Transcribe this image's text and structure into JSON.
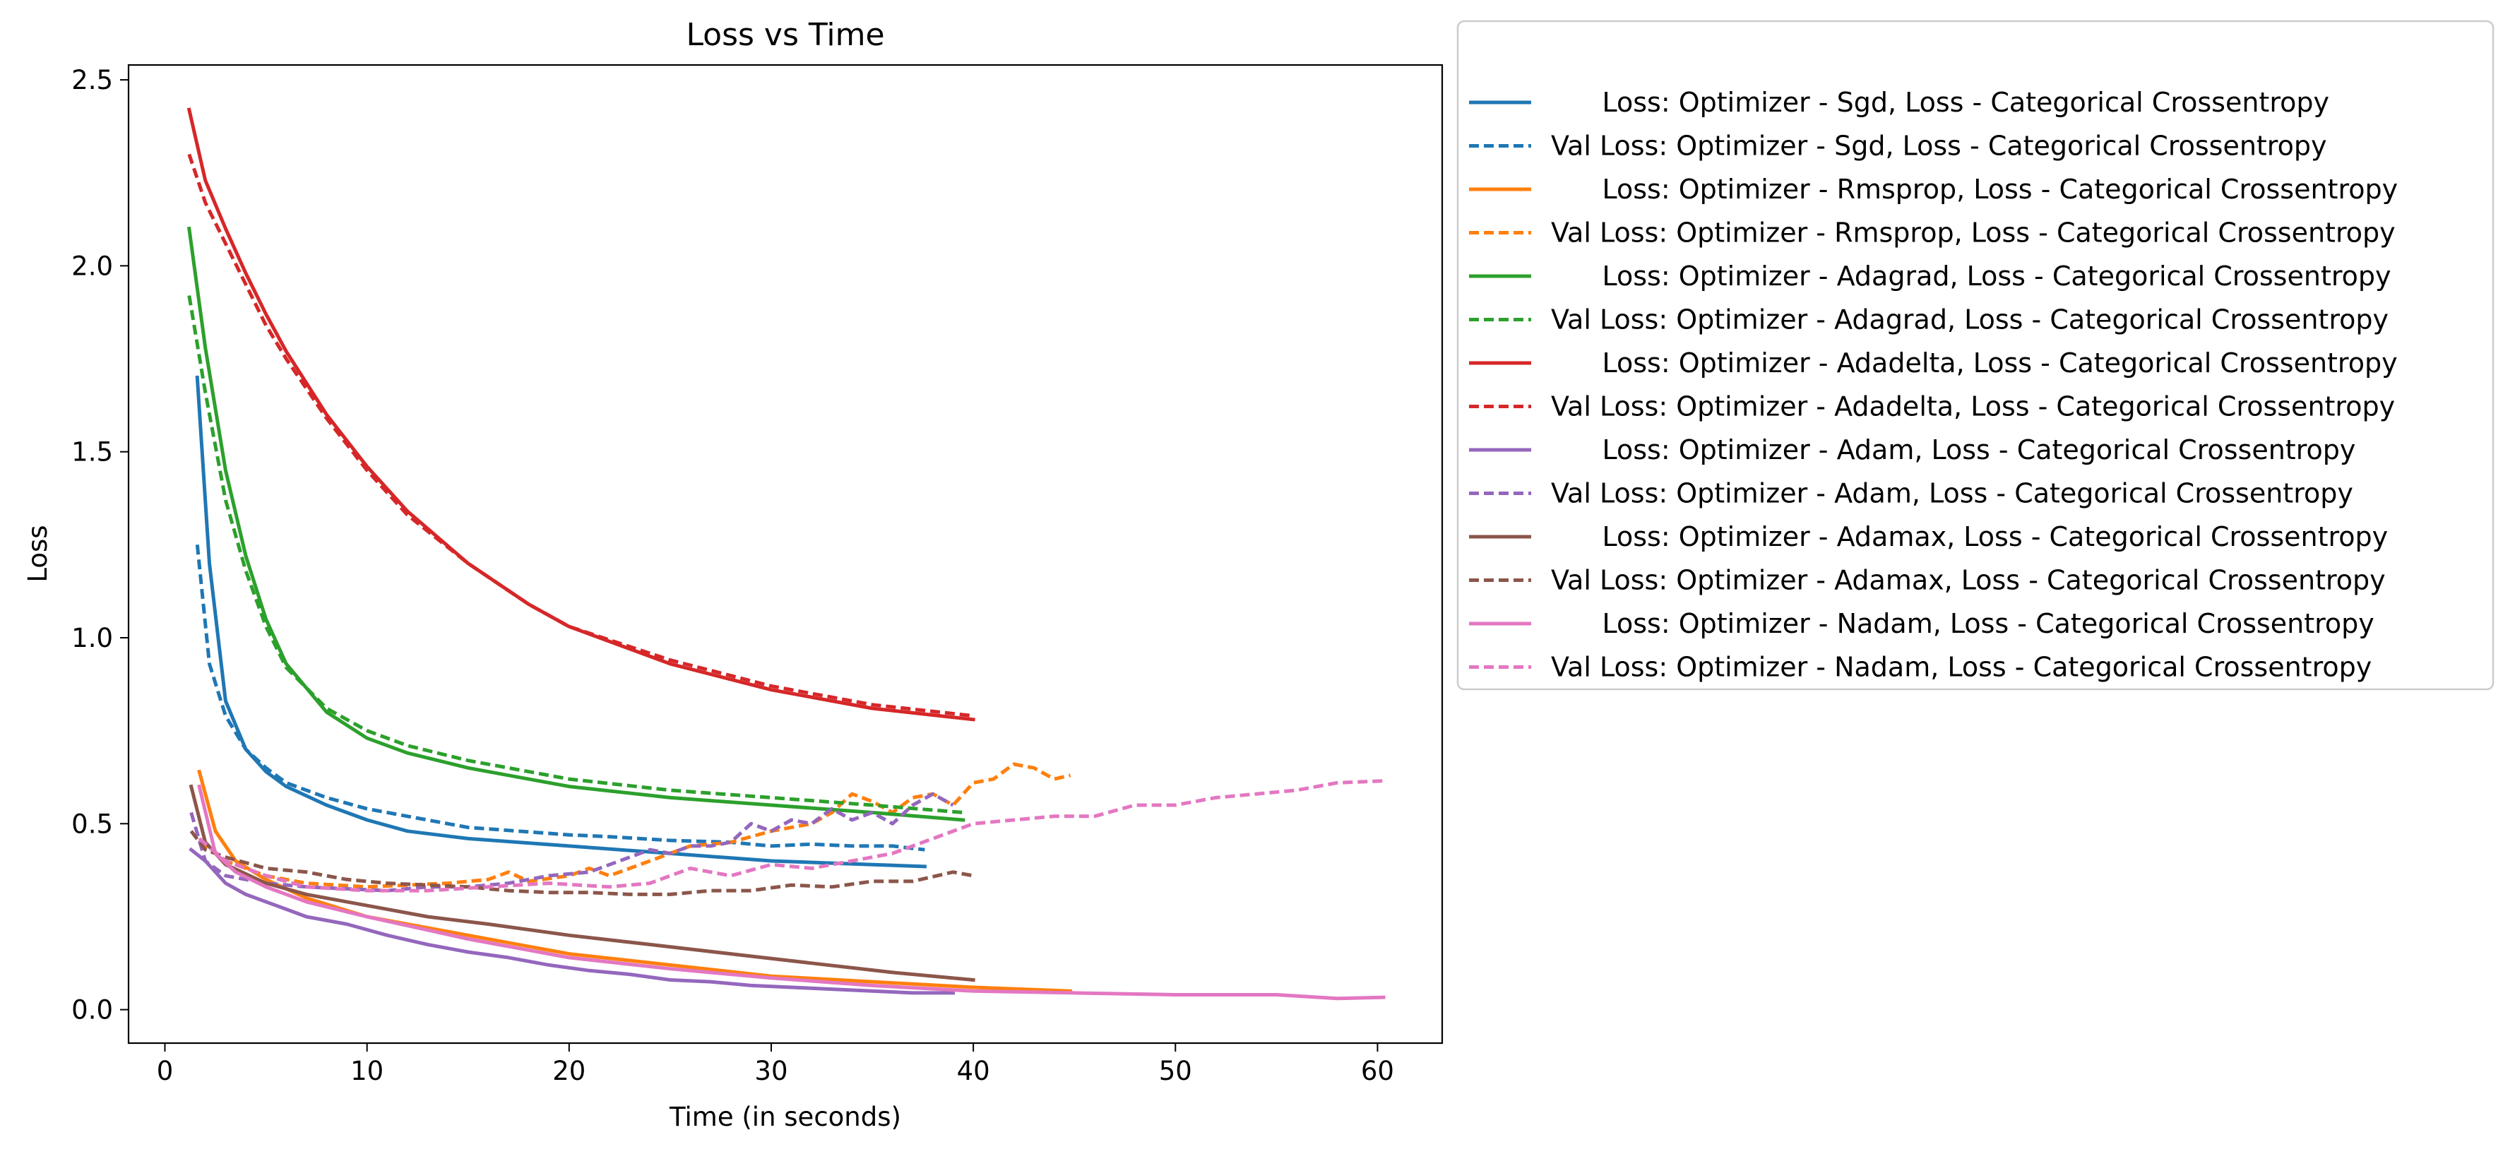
{
  "chart_data": {
    "type": "line",
    "title": "Loss vs Time",
    "xlabel": "Time (in seconds)",
    "ylabel": "Loss",
    "xlim": [
      -1.8,
      63.2
    ],
    "ylim": [
      -0.09,
      2.54
    ],
    "xticks": [
      0,
      10,
      20,
      30,
      40,
      50,
      60
    ],
    "xtick_labels": [
      "0",
      "10",
      "20",
      "30",
      "40",
      "50",
      "60"
    ],
    "yticks": [
      0.0,
      0.5,
      1.0,
      1.5,
      2.0,
      2.5
    ],
    "ytick_labels": [
      "0.0",
      "0.5",
      "1.0",
      "1.5",
      "2.0",
      "2.5"
    ],
    "grid": false,
    "legend_position": "outside-right",
    "series": [
      {
        "name": "      Loss: Optimizer - Sgd, Loss - Categorical Crossentropy",
        "color": "#1f77b4",
        "dash": "solid",
        "points": [
          [
            1.6,
            1.7
          ],
          [
            2.2,
            1.2
          ],
          [
            3.0,
            0.83
          ],
          [
            4.0,
            0.7
          ],
          [
            5.0,
            0.64
          ],
          [
            6.0,
            0.6
          ],
          [
            8.0,
            0.55
          ],
          [
            10.0,
            0.51
          ],
          [
            12.0,
            0.48
          ],
          [
            15.0,
            0.46
          ],
          [
            20.0,
            0.44
          ],
          [
            25.0,
            0.42
          ],
          [
            30.0,
            0.4
          ],
          [
            35.0,
            0.39
          ],
          [
            37.6,
            0.385
          ]
        ]
      },
      {
        "name": "Val Loss: Optimizer - Sgd, Loss - Categorical Crossentropy",
        "color": "#1f77b4",
        "dash": "dashed",
        "points": [
          [
            1.6,
            1.25
          ],
          [
            2.2,
            0.93
          ],
          [
            3.0,
            0.79
          ],
          [
            4.0,
            0.7
          ],
          [
            5.0,
            0.65
          ],
          [
            6.0,
            0.61
          ],
          [
            8.0,
            0.57
          ],
          [
            10.0,
            0.54
          ],
          [
            12.0,
            0.52
          ],
          [
            15.0,
            0.49
          ],
          [
            20.0,
            0.47
          ],
          [
            22.0,
            0.465
          ],
          [
            25.0,
            0.455
          ],
          [
            28.0,
            0.45
          ],
          [
            30.0,
            0.44
          ],
          [
            32.0,
            0.445
          ],
          [
            34.0,
            0.44
          ],
          [
            36.0,
            0.44
          ],
          [
            37.6,
            0.43
          ]
        ]
      },
      {
        "name": "      Loss: Optimizer - Rmsprop, Loss - Categorical Crossentropy",
        "color": "#ff7f0e",
        "dash": "solid",
        "points": [
          [
            1.7,
            0.64
          ],
          [
            2.5,
            0.48
          ],
          [
            3.5,
            0.4
          ],
          [
            5.0,
            0.35
          ],
          [
            7.0,
            0.3
          ],
          [
            10.0,
            0.25
          ],
          [
            15.0,
            0.2
          ],
          [
            20.0,
            0.15
          ],
          [
            25.0,
            0.12
          ],
          [
            30.0,
            0.09
          ],
          [
            35.0,
            0.075
          ],
          [
            40.0,
            0.06
          ],
          [
            44.8,
            0.05
          ]
        ]
      },
      {
        "name": "Val Loss: Optimizer - Rmsprop, Loss - Categorical Crossentropy",
        "color": "#ff7f0e",
        "dash": "dashed",
        "points": [
          [
            1.7,
            0.45
          ],
          [
            3.0,
            0.4
          ],
          [
            5.0,
            0.36
          ],
          [
            7.0,
            0.34
          ],
          [
            10.0,
            0.33
          ],
          [
            12.0,
            0.335
          ],
          [
            14.0,
            0.34
          ],
          [
            16.0,
            0.35
          ],
          [
            17.0,
            0.37
          ],
          [
            18.0,
            0.345
          ],
          [
            20.0,
            0.36
          ],
          [
            21.0,
            0.38
          ],
          [
            22.0,
            0.36
          ],
          [
            24.0,
            0.4
          ],
          [
            26.0,
            0.44
          ],
          [
            28.0,
            0.45
          ],
          [
            30.0,
            0.48
          ],
          [
            32.0,
            0.5
          ],
          [
            33.0,
            0.53
          ],
          [
            34.0,
            0.58
          ],
          [
            35.0,
            0.56
          ],
          [
            36.0,
            0.53
          ],
          [
            37.0,
            0.57
          ],
          [
            38.0,
            0.58
          ],
          [
            39.0,
            0.55
          ],
          [
            40.0,
            0.61
          ],
          [
            41.0,
            0.62
          ],
          [
            42.0,
            0.66
          ],
          [
            43.0,
            0.65
          ],
          [
            44.0,
            0.62
          ],
          [
            44.8,
            0.63
          ]
        ]
      },
      {
        "name": "      Loss: Optimizer - Adagrad, Loss - Categorical Crossentropy",
        "color": "#2ca02c",
        "dash": "solid",
        "points": [
          [
            1.2,
            2.1
          ],
          [
            2.0,
            1.78
          ],
          [
            3.0,
            1.45
          ],
          [
            4.0,
            1.22
          ],
          [
            5.0,
            1.05
          ],
          [
            6.0,
            0.93
          ],
          [
            8.0,
            0.8
          ],
          [
            10.0,
            0.73
          ],
          [
            12.0,
            0.69
          ],
          [
            15.0,
            0.65
          ],
          [
            20.0,
            0.6
          ],
          [
            25.0,
            0.57
          ],
          [
            30.0,
            0.55
          ],
          [
            35.0,
            0.53
          ],
          [
            39.5,
            0.51
          ]
        ]
      },
      {
        "name": "Val Loss: Optimizer - Adagrad, Loss - Categorical Crossentropy",
        "color": "#2ca02c",
        "dash": "dashed",
        "points": [
          [
            1.2,
            1.92
          ],
          [
            2.0,
            1.66
          ],
          [
            3.0,
            1.37
          ],
          [
            4.0,
            1.18
          ],
          [
            5.0,
            1.03
          ],
          [
            6.0,
            0.92
          ],
          [
            8.0,
            0.81
          ],
          [
            10.0,
            0.75
          ],
          [
            12.0,
            0.71
          ],
          [
            15.0,
            0.67
          ],
          [
            20.0,
            0.62
          ],
          [
            25.0,
            0.59
          ],
          [
            30.0,
            0.57
          ],
          [
            35.0,
            0.55
          ],
          [
            39.5,
            0.53
          ]
        ]
      },
      {
        "name": "      Loss: Optimizer - Adadelta, Loss - Categorical Crossentropy",
        "color": "#d62728",
        "dash": "solid",
        "points": [
          [
            1.2,
            2.42
          ],
          [
            2.0,
            2.23
          ],
          [
            3.0,
            2.1
          ],
          [
            4.0,
            1.98
          ],
          [
            5.0,
            1.87
          ],
          [
            6.0,
            1.77
          ],
          [
            8.0,
            1.6
          ],
          [
            10.0,
            1.46
          ],
          [
            12.0,
            1.34
          ],
          [
            15.0,
            1.2
          ],
          [
            18.0,
            1.09
          ],
          [
            20.0,
            1.03
          ],
          [
            25.0,
            0.93
          ],
          [
            30.0,
            0.86
          ],
          [
            35.0,
            0.81
          ],
          [
            40.0,
            0.78
          ]
        ]
      },
      {
        "name": "Val Loss: Optimizer - Adadelta, Loss - Categorical Crossentropy",
        "color": "#d62728",
        "dash": "dashed",
        "points": [
          [
            1.2,
            2.3
          ],
          [
            2.0,
            2.17
          ],
          [
            3.0,
            2.06
          ],
          [
            4.0,
            1.95
          ],
          [
            5.0,
            1.84
          ],
          [
            6.0,
            1.75
          ],
          [
            8.0,
            1.59
          ],
          [
            10.0,
            1.45
          ],
          [
            12.0,
            1.33
          ],
          [
            15.0,
            1.2
          ],
          [
            18.0,
            1.09
          ],
          [
            20.0,
            1.03
          ],
          [
            25.0,
            0.94
          ],
          [
            30.0,
            0.87
          ],
          [
            35.0,
            0.82
          ],
          [
            40.0,
            0.79
          ]
        ]
      },
      {
        "name": "      Loss: Optimizer - Adam, Loss - Categorical Crossentropy",
        "color": "#9467bd",
        "dash": "solid",
        "points": [
          [
            1.3,
            0.43
          ],
          [
            2.0,
            0.4
          ],
          [
            3.0,
            0.34
          ],
          [
            4.0,
            0.31
          ],
          [
            5.0,
            0.29
          ],
          [
            6.0,
            0.27
          ],
          [
            7.0,
            0.25
          ],
          [
            9.0,
            0.23
          ],
          [
            11.0,
            0.2
          ],
          [
            13.0,
            0.175
          ],
          [
            15.0,
            0.155
          ],
          [
            17.0,
            0.14
          ],
          [
            19.0,
            0.12
          ],
          [
            21.0,
            0.105
          ],
          [
            23.0,
            0.095
          ],
          [
            25.0,
            0.08
          ],
          [
            27.0,
            0.075
          ],
          [
            29.0,
            0.065
          ],
          [
            31.0,
            0.06
          ],
          [
            33.0,
            0.055
          ],
          [
            35.0,
            0.05
          ],
          [
            37.0,
            0.045
          ],
          [
            39.0,
            0.045
          ]
        ]
      },
      {
        "name": "Val Loss: Optimizer - Adam, Loss - Categorical Crossentropy",
        "color": "#9467bd",
        "dash": "dashed",
        "points": [
          [
            1.3,
            0.53
          ],
          [
            2.0,
            0.4
          ],
          [
            3.0,
            0.36
          ],
          [
            5.0,
            0.34
          ],
          [
            7.0,
            0.33
          ],
          [
            9.0,
            0.325
          ],
          [
            11.0,
            0.32
          ],
          [
            13.0,
            0.33
          ],
          [
            15.0,
            0.33
          ],
          [
            17.0,
            0.34
          ],
          [
            19.0,
            0.36
          ],
          [
            21.0,
            0.37
          ],
          [
            23.0,
            0.41
          ],
          [
            24.0,
            0.43
          ],
          [
            25.0,
            0.42
          ],
          [
            26.0,
            0.44
          ],
          [
            27.0,
            0.44
          ],
          [
            28.0,
            0.45
          ],
          [
            29.0,
            0.5
          ],
          [
            30.0,
            0.48
          ],
          [
            31.0,
            0.51
          ],
          [
            32.0,
            0.5
          ],
          [
            33.0,
            0.54
          ],
          [
            34.0,
            0.51
          ],
          [
            35.0,
            0.53
          ],
          [
            36.0,
            0.5
          ],
          [
            37.0,
            0.55
          ],
          [
            38.0,
            0.58
          ],
          [
            39.0,
            0.55
          ]
        ]
      },
      {
        "name": "      Loss: Optimizer - Adamax, Loss - Categorical Crossentropy",
        "color": "#8c564b",
        "dash": "solid",
        "points": [
          [
            1.3,
            0.6
          ],
          [
            2.0,
            0.45
          ],
          [
            3.0,
            0.39
          ],
          [
            5.0,
            0.34
          ],
          [
            7.0,
            0.31
          ],
          [
            10.0,
            0.28
          ],
          [
            13.0,
            0.25
          ],
          [
            16.0,
            0.23
          ],
          [
            20.0,
            0.2
          ],
          [
            24.0,
            0.175
          ],
          [
            28.0,
            0.15
          ],
          [
            32.0,
            0.125
          ],
          [
            36.0,
            0.1
          ],
          [
            40.0,
            0.08
          ]
        ]
      },
      {
        "name": "Val Loss: Optimizer - Adamax, Loss - Categorical Crossentropy",
        "color": "#8c564b",
        "dash": "dashed",
        "points": [
          [
            1.3,
            0.48
          ],
          [
            2.0,
            0.43
          ],
          [
            3.0,
            0.41
          ],
          [
            5.0,
            0.38
          ],
          [
            7.0,
            0.37
          ],
          [
            9.0,
            0.35
          ],
          [
            11.0,
            0.34
          ],
          [
            13.0,
            0.335
          ],
          [
            15.0,
            0.33
          ],
          [
            17.0,
            0.32
          ],
          [
            19.0,
            0.315
          ],
          [
            21.0,
            0.315
          ],
          [
            23.0,
            0.31
          ],
          [
            25.0,
            0.31
          ],
          [
            27.0,
            0.32
          ],
          [
            29.0,
            0.32
          ],
          [
            31.0,
            0.335
          ],
          [
            33.0,
            0.33
          ],
          [
            35.0,
            0.345
          ],
          [
            37.0,
            0.345
          ],
          [
            39.0,
            0.37
          ],
          [
            40.0,
            0.36
          ]
        ]
      },
      {
        "name": "      Loss: Optimizer - Nadam, Loss - Categorical Crossentropy",
        "color": "#e377c2",
        "dash": "solid",
        "points": [
          [
            1.7,
            0.6
          ],
          [
            2.5,
            0.42
          ],
          [
            3.5,
            0.37
          ],
          [
            5.0,
            0.33
          ],
          [
            7.0,
            0.29
          ],
          [
            10.0,
            0.25
          ],
          [
            15.0,
            0.19
          ],
          [
            20.0,
            0.14
          ],
          [
            25.0,
            0.11
          ],
          [
            30.0,
            0.085
          ],
          [
            35.0,
            0.065
          ],
          [
            40.0,
            0.05
          ],
          [
            45.0,
            0.045
          ],
          [
            50.0,
            0.04
          ],
          [
            55.0,
            0.04
          ],
          [
            58.0,
            0.03
          ],
          [
            60.3,
            0.033
          ]
        ]
      },
      {
        "name": "Val Loss: Optimizer - Nadam, Loss - Categorical Crossentropy",
        "color": "#e377c2",
        "dash": "dashed",
        "points": [
          [
            1.7,
            0.46
          ],
          [
            3.0,
            0.4
          ],
          [
            5.0,
            0.36
          ],
          [
            7.0,
            0.33
          ],
          [
            10.0,
            0.32
          ],
          [
            13.0,
            0.32
          ],
          [
            16.0,
            0.33
          ],
          [
            19.0,
            0.34
          ],
          [
            22.0,
            0.33
          ],
          [
            24.0,
            0.34
          ],
          [
            26.0,
            0.38
          ],
          [
            28.0,
            0.36
          ],
          [
            30.0,
            0.39
          ],
          [
            32.0,
            0.38
          ],
          [
            34.0,
            0.4
          ],
          [
            36.0,
            0.42
          ],
          [
            38.0,
            0.46
          ],
          [
            40.0,
            0.5
          ],
          [
            42.0,
            0.51
          ],
          [
            44.0,
            0.52
          ],
          [
            46.0,
            0.52
          ],
          [
            48.0,
            0.55
          ],
          [
            50.0,
            0.55
          ],
          [
            52.0,
            0.57
          ],
          [
            54.0,
            0.58
          ],
          [
            56.0,
            0.59
          ],
          [
            58.0,
            0.61
          ],
          [
            60.3,
            0.615
          ]
        ]
      }
    ]
  }
}
